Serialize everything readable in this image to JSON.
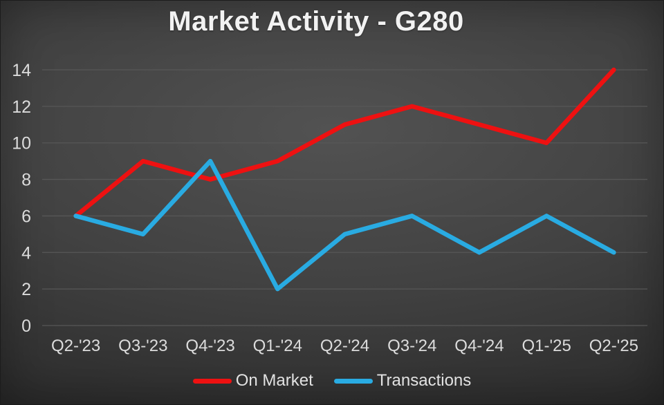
{
  "chart_data": {
    "type": "line",
    "title": "Market Activity - G280",
    "categories": [
      "Q2-'23",
      "Q3-'23",
      "Q4-'23",
      "Q1-'24",
      "Q2-'24",
      "Q3-'24",
      "Q4-'24",
      "Q1-'25",
      "Q2-'25"
    ],
    "series": [
      {
        "name": "On Market",
        "color": "#ee1111",
        "values": [
          6,
          9,
          8,
          9,
          11,
          12,
          11,
          10,
          14
        ]
      },
      {
        "name": "Transactions",
        "color": "#29abe2",
        "values": [
          6,
          5,
          9,
          2,
          5,
          6,
          4,
          6,
          4
        ]
      }
    ],
    "xlabel": "",
    "ylabel": "",
    "ylim": [
      0,
      14
    ],
    "y_ticks": [
      0,
      2,
      4,
      6,
      8,
      10,
      12,
      14
    ],
    "grid": "horizontal",
    "gridline_color": "#575757",
    "legend_position": "bottom"
  }
}
